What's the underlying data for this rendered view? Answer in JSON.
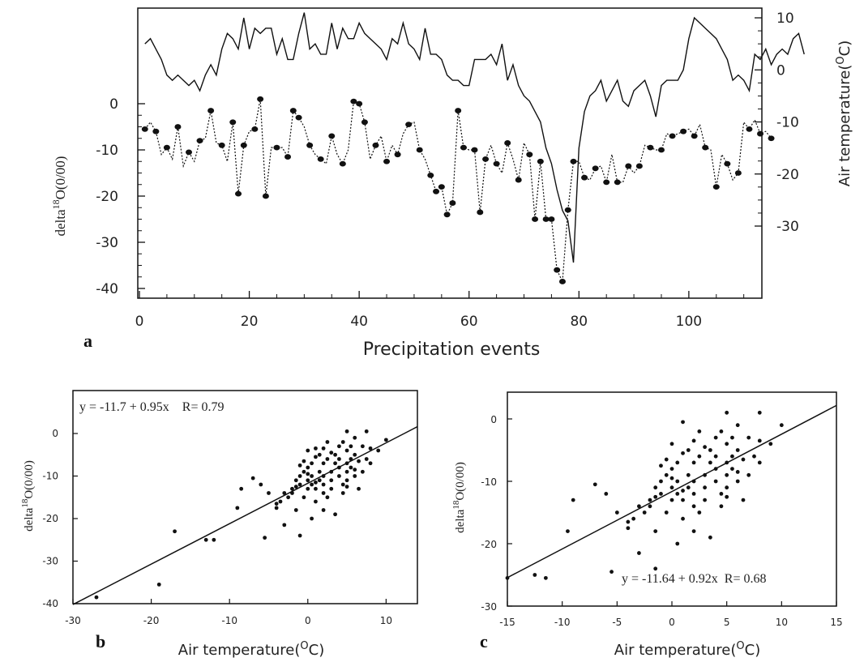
{
  "chart_data": [
    {
      "panel": "a",
      "type": "line",
      "xlabel": "Precipitation events",
      "ylabel_left": "delta 18O(0/00)",
      "ylabel_right": "Air temperature(OC)",
      "xlim": [
        0,
        113
      ],
      "ylim_left": [
        -40,
        5
      ],
      "ylim_right": [
        -35,
        12
      ],
      "xticks": [
        "0",
        "20",
        "40",
        "60",
        "80",
        "100"
      ],
      "yticks_left": [
        "0",
        "-10",
        "-20",
        "-30",
        "-40"
      ],
      "yticks_right": [
        "10",
        "0",
        "-10",
        "-20",
        "-30"
      ],
      "series": [
        {
          "axis": "right",
          "style": "solid",
          "values": [
            5,
            6,
            4,
            2,
            -1,
            -2,
            -1,
            -2,
            -3,
            -2,
            -4,
            -1,
            1,
            -1,
            4,
            7,
            6,
            4,
            10,
            4,
            8,
            7,
            8,
            8,
            3,
            6,
            2,
            2,
            7,
            11,
            4,
            5,
            3,
            3,
            9,
            4,
            8,
            6,
            6,
            9,
            7,
            6,
            5,
            4,
            2,
            6,
            5,
            9,
            5,
            4,
            2,
            8,
            3,
            3,
            2,
            -1,
            -2,
            -2,
            -3,
            -3,
            2,
            2,
            2,
            3,
            1,
            5,
            -2,
            1,
            -3,
            -5,
            -6,
            -8,
            -10,
            -15,
            -18,
            -23,
            -27,
            -29,
            -37,
            -15,
            -8,
            -5,
            -4,
            -2,
            -6,
            -4,
            -2,
            -6,
            -7,
            -4,
            -3,
            -2,
            -5,
            -9,
            -3,
            -2,
            -2,
            -2,
            0,
            6,
            10,
            9,
            8,
            7,
            6,
            4,
            2,
            -2,
            -1,
            -2,
            -4,
            3,
            2,
            4,
            1,
            3,
            4,
            3,
            6,
            7,
            3
          ]
        },
        {
          "axis": "left",
          "style": "dotted-markers",
          "values": [
            -5.5,
            -4,
            -6,
            -11,
            -9.5,
            -12,
            -5,
            -13.5,
            -10.5,
            -12.5,
            -8,
            -7.5,
            -1.5,
            -8.5,
            -9,
            -12.5,
            -4,
            -19.5,
            -9,
            -6,
            -5.5,
            1,
            -20,
            -9.5,
            -9.5,
            -9.5,
            -11.5,
            -1.5,
            -3,
            -5,
            -9,
            -11,
            -12,
            -13,
            -7,
            -11,
            -13,
            -10,
            0.5,
            0,
            -4,
            -12,
            -9,
            -7,
            -12.5,
            -9,
            -11,
            -6.5,
            -4.5,
            -4,
            -10,
            -12,
            -15.5,
            -19,
            -18,
            -24,
            -21.5,
            -1.5,
            -9.5,
            -10,
            -10,
            -23.5,
            -12,
            -9,
            -13,
            -15,
            -8.5,
            -12,
            -16.5,
            -8.5,
            -11,
            -25,
            -12.5,
            -25,
            -25,
            -36,
            -38.5,
            -23,
            -12.5,
            -12.5,
            -16,
            -16.5,
            -14,
            -13.5,
            -17,
            -11,
            -17,
            -17,
            -13.5,
            -15,
            -13.5,
            -9,
            -9.5,
            -10,
            -10,
            -6.5,
            -7,
            -6.5,
            -6,
            -5.5,
            -7,
            -4.5,
            -9.5,
            -10,
            -18,
            -11,
            -13,
            -16.5,
            -15,
            -4,
            -5.5,
            -3.5,
            -6.5,
            -6,
            -7.5
          ]
        }
      ]
    },
    {
      "panel": "b",
      "type": "scatter",
      "xlabel": "Air temperature(OC)",
      "ylabel": "delta 18O(0/00)",
      "xlim": [
        -30,
        14
      ],
      "ylim": [
        -40,
        5
      ],
      "xticks": [
        "-30",
        "-20",
        "-10",
        "0",
        "10"
      ],
      "yticks": [
        "0",
        "-10",
        "-20",
        "-30",
        "-40"
      ],
      "annotation": "y = -11.7 + 0.95x    R= 0.79",
      "fit": {
        "intercept": -11.7,
        "slope": 0.95
      },
      "points": [
        [
          -27,
          -38.5
        ],
        [
          -19,
          -35.5
        ],
        [
          -17,
          -23
        ],
        [
          -13,
          -25
        ],
        [
          -12,
          -25
        ],
        [
          -9,
          -17.5
        ],
        [
          -8.5,
          -13
        ],
        [
          -7,
          -10.5
        ],
        [
          -6,
          -12
        ],
        [
          -5.5,
          -24.5
        ],
        [
          -5,
          -14
        ],
        [
          -4,
          -16.5
        ],
        [
          -4,
          -17.5
        ],
        [
          -3.5,
          -16
        ],
        [
          -3,
          -14
        ],
        [
          -3,
          -21.5
        ],
        [
          -2.5,
          -15
        ],
        [
          -2,
          -13
        ],
        [
          -2,
          -14
        ],
        [
          -1.5,
          -18
        ],
        [
          -1.5,
          -11
        ],
        [
          -1,
          -24
        ],
        [
          -1,
          -12
        ],
        [
          -1,
          -10
        ],
        [
          -0.5,
          -9
        ],
        [
          -0.5,
          -15
        ],
        [
          -0.5,
          -6.5
        ],
        [
          0,
          -11
        ],
        [
          0,
          -8
        ],
        [
          0,
          -13
        ],
        [
          0,
          -9.5
        ],
        [
          0.5,
          -10
        ],
        [
          0.5,
          -7
        ],
        [
          0.5,
          -20
        ],
        [
          0.5,
          -12
        ],
        [
          1,
          -16
        ],
        [
          1,
          -11.5
        ],
        [
          1,
          -13
        ],
        [
          1,
          -3.5
        ],
        [
          1.5,
          -11
        ],
        [
          1.5,
          -5
        ],
        [
          1.5,
          -9
        ],
        [
          2,
          -14
        ],
        [
          2,
          -7
        ],
        [
          2,
          -10
        ],
        [
          2,
          -12
        ],
        [
          2,
          -18
        ],
        [
          2.5,
          -6
        ],
        [
          2.5,
          -2
        ],
        [
          2.5,
          -15
        ],
        [
          3,
          -9
        ],
        [
          3,
          -11
        ],
        [
          3,
          -13
        ],
        [
          3.5,
          -19
        ],
        [
          3.5,
          -7
        ],
        [
          3.5,
          -5
        ],
        [
          4,
          -3
        ],
        [
          4,
          -8
        ],
        [
          4,
          -6
        ],
        [
          4,
          -10
        ],
        [
          4.5,
          -12
        ],
        [
          4.5,
          -2
        ],
        [
          4.5,
          -14
        ],
        [
          5,
          -4
        ],
        [
          5,
          -7
        ],
        [
          5,
          -9
        ],
        [
          5,
          0.5
        ],
        [
          5,
          -11
        ],
        [
          5.5,
          -6
        ],
        [
          5.5,
          -3
        ],
        [
          5.5,
          -8
        ],
        [
          6,
          -1
        ],
        [
          6,
          -5
        ],
        [
          6,
          -10
        ],
        [
          6.5,
          -6.5
        ],
        [
          6.5,
          -13
        ],
        [
          7,
          -3
        ],
        [
          7,
          -9
        ],
        [
          7.5,
          0.5
        ],
        [
          7.5,
          -6
        ],
        [
          8,
          -7
        ],
        [
          8,
          -3.5
        ],
        [
          9,
          -4
        ],
        [
          10,
          -1.5
        ],
        [
          1,
          -5.5
        ],
        [
          -1,
          -7.5
        ],
        [
          3,
          -4.5
        ],
        [
          6,
          -8.5
        ],
        [
          2,
          -3.5
        ],
        [
          0,
          -4
        ],
        [
          -1.5,
          -12.5
        ],
        [
          5,
          -12.5
        ]
      ]
    },
    {
      "panel": "c",
      "type": "scatter",
      "xlabel": "Air temperature(OC)",
      "ylabel": "delta 18O(0/00)",
      "xlim": [
        -15,
        15
      ],
      "ylim": [
        -30,
        3
      ],
      "xticks": [
        "-15",
        "-10",
        "-5",
        "0",
        "5",
        "10",
        "15"
      ],
      "yticks": [
        "0",
        "-10",
        "-20",
        "-30"
      ],
      "annotation": "y = -11.64 + 0.92x  R= 0.68",
      "fit": {
        "intercept": -11.64,
        "slope": 0.92
      },
      "points": [
        [
          -15,
          -25.5
        ],
        [
          -12.5,
          -25
        ],
        [
          -11.5,
          -25.5
        ],
        [
          -9.5,
          -18
        ],
        [
          -9,
          -13
        ],
        [
          -7,
          -10.5
        ],
        [
          -6,
          -12
        ],
        [
          -5.5,
          -24.5
        ],
        [
          -5,
          -15
        ],
        [
          -4,
          -16.5
        ],
        [
          -4,
          -17.5
        ],
        [
          -3.5,
          -16
        ],
        [
          -3,
          -14
        ],
        [
          -3,
          -21.5
        ],
        [
          -2.5,
          -15
        ],
        [
          -2,
          -13
        ],
        [
          -2,
          -14
        ],
        [
          -1.5,
          -18
        ],
        [
          -1.5,
          -11
        ],
        [
          -1.5,
          -24
        ],
        [
          -1,
          -12
        ],
        [
          -1,
          -10
        ],
        [
          -0.5,
          -9
        ],
        [
          -0.5,
          -15
        ],
        [
          -0.5,
          -6.5
        ],
        [
          0,
          -11
        ],
        [
          0,
          -8
        ],
        [
          0,
          -13
        ],
        [
          0,
          -9.5
        ],
        [
          0.5,
          -10
        ],
        [
          0.5,
          -7
        ],
        [
          0.5,
          -20
        ],
        [
          0.5,
          -12
        ],
        [
          1,
          -16
        ],
        [
          1,
          -11.5
        ],
        [
          1,
          -13
        ],
        [
          1,
          -0.5
        ],
        [
          1.5,
          -11
        ],
        [
          1.5,
          -5
        ],
        [
          1.5,
          -9
        ],
        [
          2,
          -14
        ],
        [
          2,
          -7
        ],
        [
          2,
          -10
        ],
        [
          2,
          -12
        ],
        [
          2,
          -18
        ],
        [
          2.5,
          -6
        ],
        [
          2.5,
          -2
        ],
        [
          2.5,
          -15
        ],
        [
          3,
          -9
        ],
        [
          3,
          -11
        ],
        [
          3,
          -13
        ],
        [
          3.5,
          -19
        ],
        [
          3.5,
          -7
        ],
        [
          3.5,
          -5
        ],
        [
          4,
          -3
        ],
        [
          4,
          -8
        ],
        [
          4,
          -6
        ],
        [
          4,
          -10
        ],
        [
          4.5,
          -12
        ],
        [
          4.5,
          -2
        ],
        [
          4.5,
          -14
        ],
        [
          5,
          -4
        ],
        [
          5,
          -7
        ],
        [
          5,
          -9
        ],
        [
          5,
          1
        ],
        [
          5,
          -11
        ],
        [
          5.5,
          -6
        ],
        [
          5.5,
          -3
        ],
        [
          5.5,
          -8
        ],
        [
          6,
          -1
        ],
        [
          6,
          -5
        ],
        [
          6,
          -10
        ],
        [
          6.5,
          -6.5
        ],
        [
          6.5,
          -13
        ],
        [
          7,
          -3
        ],
        [
          7,
          -9
        ],
        [
          8,
          1
        ],
        [
          7.5,
          -6
        ],
        [
          8,
          -7
        ],
        [
          8,
          -3.5
        ],
        [
          9,
          -4
        ],
        [
          10,
          -1
        ],
        [
          1,
          -5.5
        ],
        [
          -1,
          -7.5
        ],
        [
          3,
          -4.5
        ],
        [
          6,
          -8.5
        ],
        [
          2,
          -3.5
        ],
        [
          0,
          -4
        ],
        [
          -1.5,
          -12.5
        ],
        [
          5,
          -12.5
        ]
      ]
    }
  ],
  "labels": {
    "panel_a": "a",
    "panel_b": "b",
    "panel_c": "c",
    "delta_prefix": "delta",
    "delta_sup": "18",
    "delta_suffix": "O(0/00)",
    "air_temp_prefix": "Air  temperature(",
    "air_temp_sup": "O",
    "air_temp_suffix": "C)",
    "precip_xlabel": "Precipitation  events",
    "bc_air_prefix": "Air  temperature(",
    "bc_air_sup": "O",
    "bc_air_suffix": "C)"
  }
}
